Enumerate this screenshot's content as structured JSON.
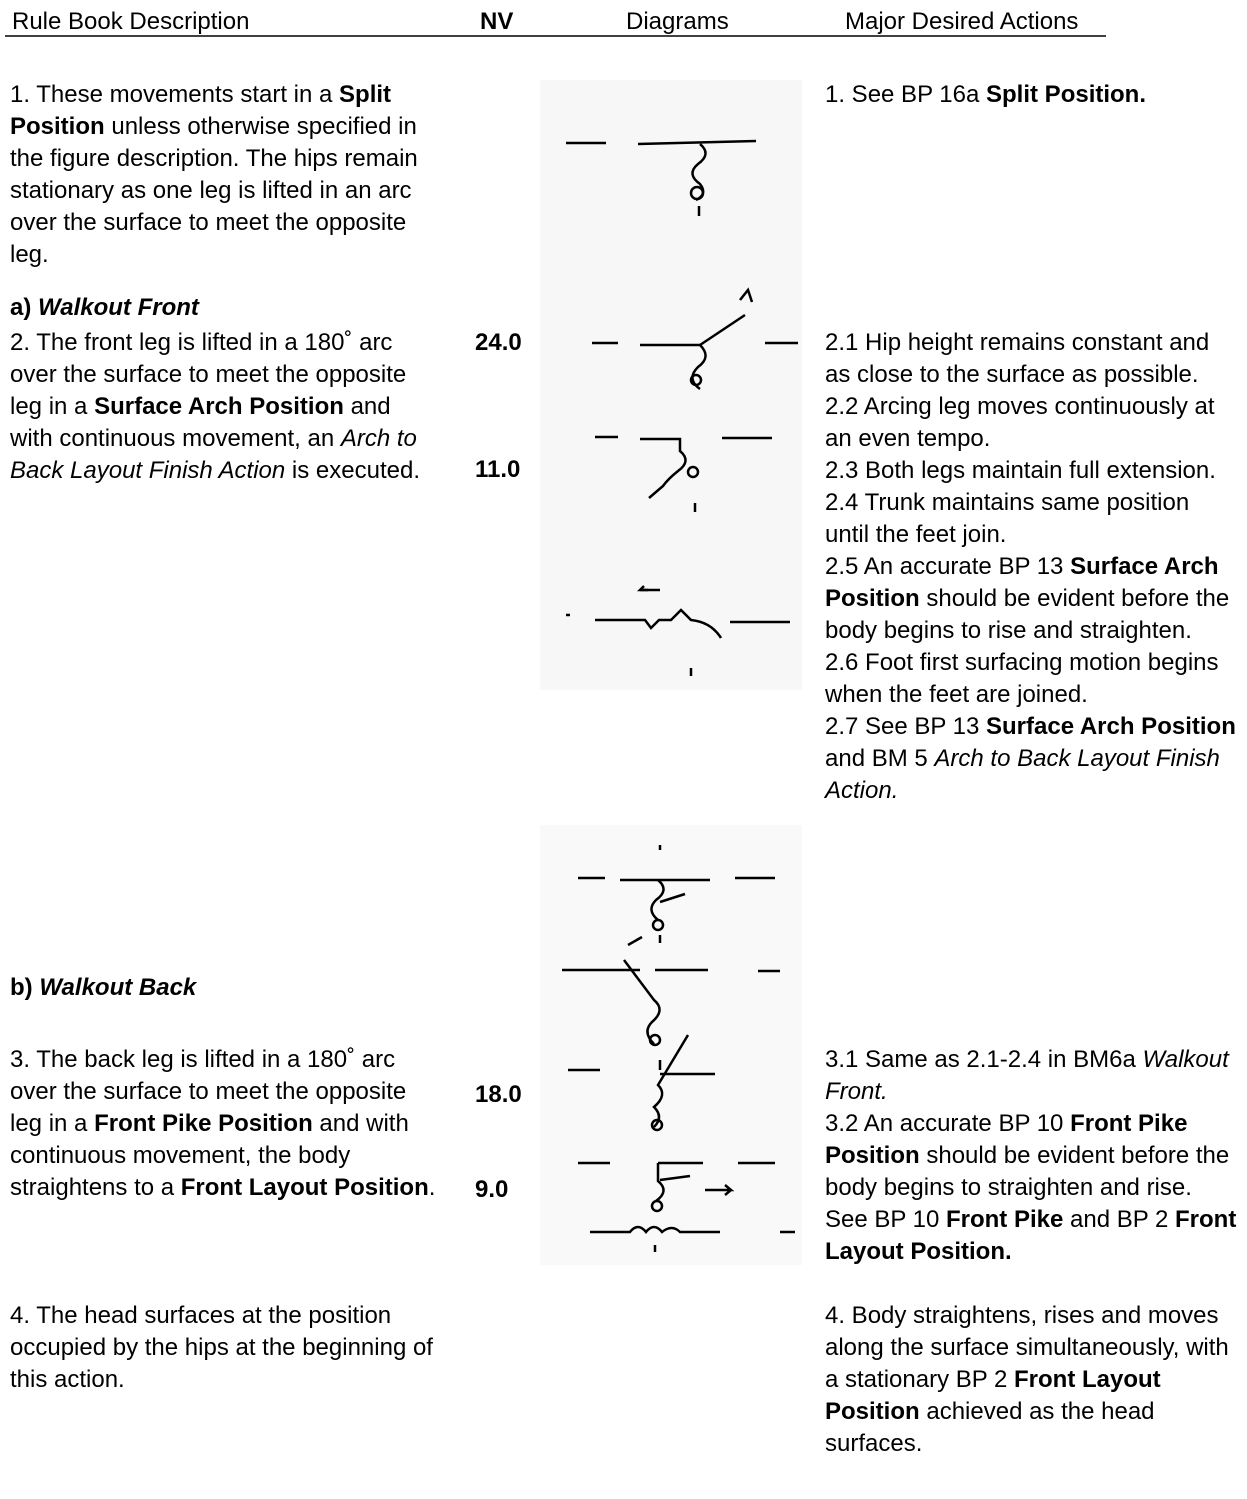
{
  "header": {
    "columns": [
      "Rule Book Description",
      "NV",
      "Diagrams",
      "Major Desired Actions"
    ]
  },
  "description": [
    {
      "runs": [
        {
          "text": "1. These movements start in a "
        },
        {
          "text": "Split Position",
          "style": "bold"
        },
        {
          "text": " unless otherwise specified in the figure description.  The hips remain stationary as one leg is lifted in an arc over the surface to meet the opposite leg."
        }
      ]
    },
    {
      "runs": [
        {
          "text": "a) ",
          "style": "bold"
        },
        {
          "text": "Walkout Front",
          "style": "bold-italic"
        }
      ]
    },
    {
      "runs": [
        {
          "text": "2. The front leg is lifted in a 180˚ arc over the surface to meet the opposite leg in a "
        },
        {
          "text": "Surface Arch Position",
          "style": "bold"
        },
        {
          "text": " and with continuous movement, an "
        },
        {
          "text": "Arch to Back Layout Finish Action",
          "style": "italic"
        },
        {
          "text": " is executed."
        }
      ]
    },
    {
      "runs": [
        {
          "text": "b) ",
          "style": "bold"
        },
        {
          "text": "Walkout Back",
          "style": "bold-italic"
        }
      ]
    },
    {
      "runs": [
        {
          "text": "3.  The back leg is lifted in a 180˚ arc over the surface to meet the opposite leg in a "
        },
        {
          "text": "Front Pike Position",
          "style": "bold"
        },
        {
          "text": " and with continuous movement, the body straightens to a "
        },
        {
          "text": "Front Layout Position",
          "style": "bold"
        },
        {
          "text": "."
        }
      ]
    },
    {
      "runs": [
        {
          "text": "4.  The head surfaces at the position occupied by the hips at the beginning of this action."
        }
      ]
    }
  ],
  "nv": [
    "24.0",
    "11.0",
    "18.0",
    "9.0"
  ],
  "actions": [
    {
      "runs": [
        {
          "text": "1. See BP 16a "
        },
        {
          "text": "Split Position.",
          "style": "bold"
        }
      ]
    },
    {
      "runs": [
        {
          "text": "2.1 Hip height remains constant and as close to the surface as possible."
        }
      ]
    },
    {
      "runs": [
        {
          "text": "2.2  Arcing leg moves continuously at an even tempo."
        }
      ]
    },
    {
      "runs": [
        {
          "text": "2.3  Both legs maintain full extension."
        }
      ]
    },
    {
      "runs": [
        {
          "text": "2.4  Trunk maintains same position until the feet join."
        }
      ]
    },
    {
      "runs": [
        {
          "text": "2.5  An accurate BP 13 "
        },
        {
          "text": "Surface Arch Position",
          "style": "bold"
        },
        {
          "text": " should be evident before the body begins to rise and straighten."
        }
      ]
    },
    {
      "runs": [
        {
          "text": "2.6  Foot first surfacing motion begins when the feet are joined."
        }
      ]
    },
    {
      "runs": [
        {
          "text": "2.7  See BP 13  "
        },
        {
          "text": "Surface Arch Position",
          "style": "bold"
        },
        {
          "text": "  and  BM 5  "
        },
        {
          "text": "Arch to Back Layout Finish Action.",
          "style": "italic"
        }
      ]
    },
    {
      "runs": [
        {
          "text": "3.1  Same as  2.1-2.4 in BM6a "
        },
        {
          "text": "Walkout Front.",
          "style": "italic"
        }
      ]
    },
    {
      "runs": [
        {
          "text": "3.2  An accurate BP 10 "
        },
        {
          "text": "Front Pike Position",
          "style": "bold"
        },
        {
          "text": " should be evident before the body begins to straighten and rise. See BP 10 "
        },
        {
          "text": "Front Pike",
          "style": "bold"
        },
        {
          "text": " and BP 2 "
        },
        {
          "text": "Front Layout Position.",
          "style": "bold"
        }
      ]
    },
    {
      "runs": [
        {
          "text": "4. Body straightens, rises and moves along the surface simultaneously, with a stationary BP 2 "
        },
        {
          "text": "Front Layout Position",
          "style": "bold"
        },
        {
          "text": " achieved as the head surfaces."
        }
      ]
    }
  ]
}
